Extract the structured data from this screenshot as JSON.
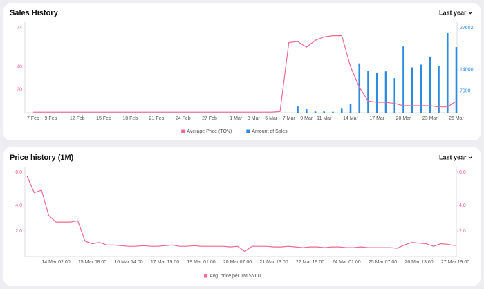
{
  "chart_data": [
    {
      "type": "combo",
      "title": "Sales History",
      "period": "Last year",
      "categories": [
        "7 Feb",
        null,
        "9 Feb",
        null,
        null,
        "12 Feb",
        null,
        null,
        "15 Feb",
        null,
        null,
        "18 Feb",
        null,
        null,
        "21 Feb",
        null,
        null,
        "24 Feb",
        null,
        null,
        "27 Feb",
        null,
        null,
        "1 Mar",
        null,
        "3 Mar",
        null,
        "5 Mar",
        null,
        "7 Mar",
        null,
        "9 Mar",
        null,
        "11 Mar",
        null,
        null,
        "14 Mar",
        null,
        null,
        "17 Mar",
        null,
        null,
        "20 Mar",
        null,
        null,
        "23 Mar",
        null,
        null,
        "26 Mar"
      ],
      "series": [
        {
          "name": "Average Price (TON)",
          "type": "line",
          "color": "#f06790",
          "values": [
            0.5,
            0.5,
            0.5,
            0.5,
            0.5,
            0.5,
            0.5,
            0.5,
            0.5,
            0.5,
            0.5,
            0.5,
            0.5,
            0.5,
            0.5,
            0.5,
            0.5,
            0.5,
            0.5,
            0.5,
            0.5,
            0.5,
            0.5,
            0.5,
            0.5,
            0.5,
            0.5,
            0.5,
            1,
            61,
            62,
            57,
            63,
            66,
            67,
            67,
            40,
            22,
            10,
            9,
            9,
            8,
            6,
            6,
            6,
            6,
            5,
            5,
            10
          ]
        },
        {
          "name": "Amount of Sales",
          "type": "bar",
          "axis": "y2",
          "color": "#2a8be0",
          "values": [
            0,
            0,
            0,
            0,
            0,
            0,
            0,
            0,
            0,
            0,
            0,
            0,
            0,
            0,
            0,
            0,
            0,
            0,
            0,
            0,
            0,
            0,
            0,
            0,
            0,
            0,
            0,
            0,
            0,
            0,
            2000,
            1100,
            400,
            400,
            300,
            1500,
            2900,
            16000,
            13600,
            13000,
            13400,
            11200,
            21500,
            14700,
            15600,
            18200,
            15200,
            25800,
            21300
          ]
        }
      ],
      "ylim": [
        0,
        74
      ],
      "yticks": [
        20,
        40,
        74
      ],
      "y2lim": [
        0,
        27602
      ],
      "y2ticks": [
        7000,
        14000,
        27602
      ]
    },
    {
      "type": "line",
      "title": "Price history (1M)",
      "period": "Last year",
      "categories": [
        null,
        null,
        null,
        null,
        "14 Mar 02:00",
        null,
        null,
        null,
        null,
        "15 Mar 08:00",
        null,
        null,
        null,
        null,
        "16 Mar 14:00",
        null,
        null,
        null,
        null,
        "17 Mar 19:00",
        null,
        null,
        null,
        null,
        "19 Mar 01:00",
        null,
        null,
        null,
        null,
        "20 Mar 07:00",
        null,
        null,
        null,
        null,
        "21 Mar 13:00",
        null,
        null,
        null,
        null,
        "22 Mar 19:00",
        null,
        null,
        null,
        null,
        "24 Mar 01:00",
        null,
        null,
        null,
        null,
        "25 Mar 07:00",
        null,
        null,
        null,
        null,
        "26 Mar 13:00",
        null,
        null,
        null,
        null,
        "27 Mar 19:00"
      ],
      "series": [
        {
          "name": "Avg. price per 1M $NOT",
          "color": "#f06790",
          "values": [
            6.3,
            5.0,
            5.2,
            3.2,
            2.7,
            2.7,
            2.7,
            2.8,
            1.2,
            1.0,
            1.1,
            0.9,
            0.9,
            0.85,
            0.8,
            0.8,
            0.85,
            0.8,
            0.8,
            0.85,
            0.9,
            0.8,
            0.8,
            0.85,
            0.8,
            0.8,
            0.8,
            0.8,
            0.75,
            0.8,
            0.4,
            0.8,
            0.8,
            0.8,
            0.75,
            0.75,
            0.8,
            0.75,
            0.7,
            0.75,
            0.75,
            0.7,
            0.75,
            0.75,
            0.7,
            0.7,
            0.75,
            0.7,
            0.7,
            0.7,
            0.7,
            0.65,
            0.9,
            1.1,
            1.05,
            1.0,
            0.8,
            1.0,
            0.95,
            0.85
          ]
        }
      ],
      "ylim": [
        0,
        6.6
      ],
      "yticks": [
        {
          "value": 2,
          "label": "2.0"
        },
        {
          "value": 4,
          "label": "4.0"
        },
        6.6
      ],
      "y2lim": [
        0,
        6.6
      ],
      "y2ticks": [
        {
          "value": 2,
          "label": "2.0"
        },
        {
          "value": 4,
          "label": "4.0"
        },
        6.6
      ]
    }
  ]
}
